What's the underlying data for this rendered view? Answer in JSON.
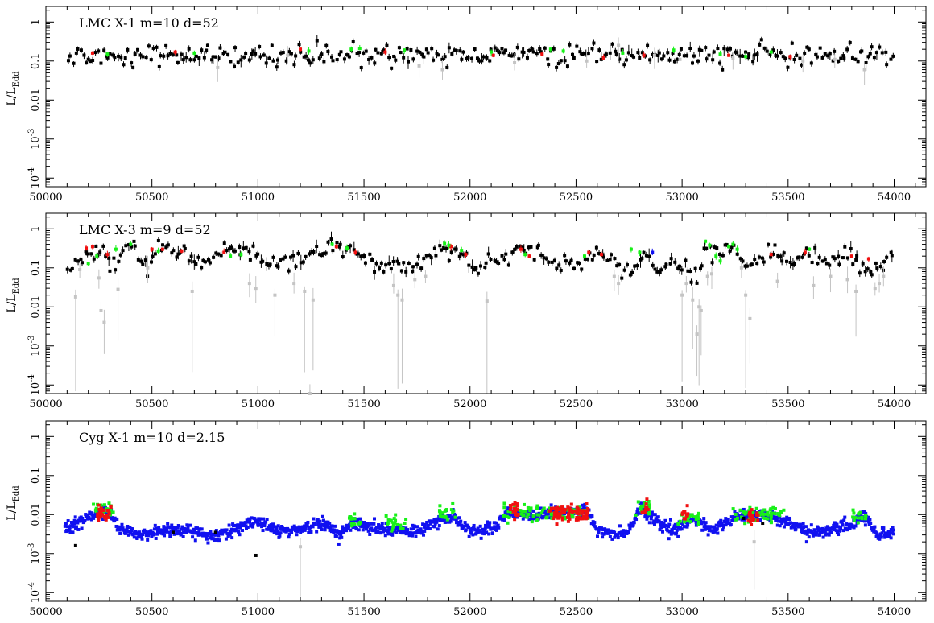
{
  "figure": {
    "ylabel": {
      "base": "L/L",
      "sub": "Edd"
    },
    "colors": {
      "black": "#000000",
      "grey": "#c4c4c4",
      "red": "#f01010",
      "green": "#18f018",
      "blue": "#1010f0"
    }
  },
  "chart_data": [
    {
      "type": "scatter",
      "title": "LMC X-1   m=10  d=52",
      "xlim": [
        50000,
        54150
      ],
      "ylim": [
        6e-05,
        2.5
      ],
      "ylog": true,
      "xticks": [
        "50000",
        "50500",
        "51000",
        "51500",
        "52000",
        "52500",
        "53000",
        "53500",
        "54000"
      ],
      "yticks": [
        "1",
        "0.1",
        "0.01",
        "10^-3",
        "10^-4"
      ],
      "ytick_values": [
        1,
        0.1,
        0.01,
        0.001,
        0.0001
      ],
      "base_level": 0.14,
      "x_range": [
        50100,
        54000
      ],
      "series": [
        {
          "name": "black",
          "color": "#000000",
          "n": 330,
          "level": 0.14,
          "spread": 0.13
        },
        {
          "name": "grey",
          "color": "#c4c4c4",
          "points": [
            [
              50810,
              0.068
            ],
            [
              51140,
              0.14
            ],
            [
              51760,
              0.075
            ],
            [
              51870,
              0.06
            ],
            [
              52210,
              0.09
            ],
            [
              52550,
              0.1
            ],
            [
              52700,
              0.25
            ],
            [
              52870,
              0.14
            ],
            [
              52990,
              0.11
            ],
            [
              53240,
              0.12
            ],
            [
              53570,
              0.1
            ],
            [
              53720,
              0.11
            ],
            [
              53860,
              0.06
            ]
          ]
        },
        {
          "name": "red",
          "color": "#f01010",
          "points": [
            [
              50220,
              0.16
            ],
            [
              50610,
              0.17
            ],
            [
              51200,
              0.2
            ],
            [
              51600,
              0.17
            ],
            [
              52110,
              0.14
            ],
            [
              52340,
              0.15
            ],
            [
              52630,
              0.12
            ],
            [
              52820,
              0.14
            ],
            [
              53220,
              0.14
            ],
            [
              53510,
              0.13
            ]
          ]
        },
        {
          "name": "green",
          "color": "#18f018",
          "points": [
            [
              50290,
              0.15
            ],
            [
              50700,
              0.16
            ],
            [
              51240,
              0.18
            ],
            [
              51440,
              0.2
            ],
            [
              51480,
              0.21
            ],
            [
              51690,
              0.19
            ],
            [
              52100,
              0.17
            ],
            [
              52380,
              0.2
            ],
            [
              52440,
              0.18
            ],
            [
              52720,
              0.16
            ],
            [
              52960,
              0.19
            ],
            [
              53180,
              0.15
            ],
            [
              53300,
              0.13
            ],
            [
              53420,
              0.17
            ]
          ]
        }
      ]
    },
    {
      "type": "scatter",
      "title": "LMC X-3   m=9  d=52",
      "xlim": [
        50000,
        54150
      ],
      "ylim": [
        6e-05,
        2.5
      ],
      "ylog": true,
      "xticks": [
        "50000",
        "50500",
        "51000",
        "51500",
        "52000",
        "52500",
        "53000",
        "53500",
        "54000"
      ],
      "yticks": [
        "1",
        "0.1",
        "0.01",
        "10^-3",
        "10^-4"
      ],
      "ytick_values": [
        1,
        0.1,
        0.01,
        0.001,
        0.0001
      ],
      "x_range": [
        50100,
        54000
      ],
      "profile": [
        [
          50100,
          0.09
        ],
        [
          50180,
          0.2
        ],
        [
          50240,
          0.3
        ],
        [
          50300,
          0.1
        ],
        [
          50370,
          0.25
        ],
        [
          50420,
          0.35
        ],
        [
          50480,
          0.07
        ],
        [
          50520,
          0.3
        ],
        [
          50600,
          0.28
        ],
        [
          50680,
          0.15
        ],
        [
          50760,
          0.15
        ],
        [
          50850,
          0.3
        ],
        [
          50930,
          0.2
        ],
        [
          50980,
          0.25
        ],
        [
          51040,
          0.15
        ],
        [
          51150,
          0.15
        ],
        [
          51250,
          0.2
        ],
        [
          51320,
          0.35
        ],
        [
          51400,
          0.3
        ],
        [
          51500,
          0.2
        ],
        [
          51580,
          0.1
        ],
        [
          51680,
          0.1
        ],
        [
          51780,
          0.15
        ],
        [
          51880,
          0.4
        ],
        [
          51960,
          0.2
        ],
        [
          52030,
          0.08
        ],
        [
          52100,
          0.15
        ],
        [
          52160,
          0.15
        ],
        [
          52250,
          0.3
        ],
        [
          52350,
          0.25
        ],
        [
          52420,
          0.12
        ],
        [
          52500,
          0.15
        ],
        [
          52600,
          0.25
        ],
        [
          52680,
          0.15
        ],
        [
          52720,
          0.08
        ],
        [
          52820,
          0.2
        ],
        [
          52880,
          0.08
        ],
        [
          52950,
          0.15
        ],
        [
          53020,
          0.1
        ],
        [
          53080,
          0.06
        ],
        [
          53110,
          0.45
        ],
        [
          53160,
          0.2
        ],
        [
          53230,
          0.4
        ],
        [
          53310,
          0.08
        ],
        [
          53380,
          0.2
        ],
        [
          53460,
          0.25
        ],
        [
          53520,
          0.15
        ],
        [
          53600,
          0.25
        ],
        [
          53680,
          0.1
        ],
        [
          53760,
          0.2
        ],
        [
          53860,
          0.1
        ],
        [
          53950,
          0.12
        ],
        [
          54000,
          0.25
        ]
      ],
      "series": [
        {
          "name": "black",
          "color": "#000000",
          "n": 330
        },
        {
          "name": "grey",
          "color": "#c4c4c4",
          "points": [
            [
              50140,
              0.018
            ],
            [
              50160,
              0.09
            ],
            [
              50250,
              0.055
            ],
            [
              50260,
              0.008
            ],
            [
              50275,
              0.004
            ],
            [
              50340,
              0.028
            ],
            [
              50480,
              0.1
            ],
            [
              50690,
              0.025
            ],
            [
              50960,
              0.04
            ],
            [
              50990,
              0.03
            ],
            [
              51080,
              0.02
            ],
            [
              51170,
              0.04
            ],
            [
              51220,
              0.025
            ],
            [
              51245,
              6e-05
            ],
            [
              51260,
              0.015
            ],
            [
              51640,
              0.035
            ],
            [
              51660,
              0.02
            ],
            [
              51680,
              0.015
            ],
            [
              51740,
              0.05
            ],
            [
              51790,
              0.06
            ],
            [
              52080,
              0.014
            ],
            [
              52680,
              0.06
            ],
            [
              52700,
              0.04
            ],
            [
              53000,
              0.02
            ],
            [
              53020,
              0.04
            ],
            [
              53050,
              0.015
            ],
            [
              53070,
              0.002
            ],
            [
              53080,
              0.01
            ],
            [
              53090,
              0.008
            ],
            [
              53120,
              0.06
            ],
            [
              53140,
              0.07
            ],
            [
              53280,
              0.1
            ],
            [
              53300,
              0.02
            ],
            [
              53320,
              0.005
            ],
            [
              53450,
              0.045
            ],
            [
              53620,
              0.035
            ],
            [
              53700,
              0.06
            ],
            [
              53780,
              0.05
            ],
            [
              53820,
              0.025
            ],
            [
              53910,
              0.03
            ],
            [
              53930,
              0.04
            ],
            [
              53950,
              0.06
            ]
          ]
        },
        {
          "name": "red",
          "color": "#f01010",
          "points": [
            [
              50190,
              0.32
            ],
            [
              50220,
              0.35
            ],
            [
              50290,
              0.22
            ],
            [
              50500,
              0.3
            ],
            [
              50550,
              0.3
            ],
            [
              50640,
              0.27
            ],
            [
              50840,
              0.25
            ],
            [
              51370,
              0.35
            ],
            [
              51460,
              0.25
            ],
            [
              51910,
              0.35
            ],
            [
              51980,
              0.22
            ],
            [
              52240,
              0.3
            ],
            [
              52280,
              0.2
            ],
            [
              52560,
              0.25
            ],
            [
              52620,
              0.22
            ],
            [
              53420,
              0.22
            ],
            [
              53580,
              0.25
            ],
            [
              53800,
              0.2
            ],
            [
              53880,
              0.17
            ]
          ]
        },
        {
          "name": "green",
          "color": "#18f018",
          "points": [
            [
              50200,
              0.13
            ],
            [
              50240,
              0.2
            ],
            [
              50330,
              0.3
            ],
            [
              50400,
              0.4
            ],
            [
              50530,
              0.27
            ],
            [
              50870,
              0.2
            ],
            [
              50920,
              0.22
            ],
            [
              51350,
              0.4
            ],
            [
              51420,
              0.32
            ],
            [
              51880,
              0.42
            ],
            [
              51900,
              0.38
            ],
            [
              51960,
              0.28
            ],
            [
              52260,
              0.22
            ],
            [
              52540,
              0.2
            ],
            [
              52760,
              0.3
            ],
            [
              52800,
              0.25
            ],
            [
              53110,
              0.48
            ],
            [
              53130,
              0.38
            ],
            [
              53160,
              0.2
            ],
            [
              53180,
              0.15
            ],
            [
              53220,
              0.35
            ],
            [
              53240,
              0.4
            ],
            [
              53260,
              0.3
            ],
            [
              53600,
              0.3
            ]
          ]
        },
        {
          "name": "blue",
          "color": "#1010f0",
          "points": [
            [
              52860,
              0.25
            ]
          ]
        }
      ]
    },
    {
      "type": "scatter",
      "title": "Cyg X-1   m=10  d=2.15",
      "xlim": [
        50000,
        54150
      ],
      "ylim": [
        6e-05,
        2.5
      ],
      "ylog": true,
      "xticks": [
        "50000",
        "50500",
        "51000",
        "51500",
        "52000",
        "52500",
        "53000",
        "53500",
        "54000"
      ],
      "yticks": [
        "1",
        "0.1",
        "0.01",
        "10^-3",
        "10^-4"
      ],
      "ytick_values": [
        1,
        0.1,
        0.01,
        0.001,
        0.0001
      ],
      "x_range": [
        50090,
        54000
      ],
      "profile": [
        [
          50090,
          0.004
        ],
        [
          50200,
          0.008
        ],
        [
          50250,
          0.012
        ],
        [
          50310,
          0.01
        ],
        [
          50350,
          0.004
        ],
        [
          50450,
          0.003
        ],
        [
          50600,
          0.0045
        ],
        [
          50750,
          0.003
        ],
        [
          50850,
          0.0035
        ],
        [
          51000,
          0.007
        ],
        [
          51100,
          0.0035
        ],
        [
          51200,
          0.004
        ],
        [
          51300,
          0.006
        ],
        [
          51380,
          0.003
        ],
        [
          51450,
          0.007
        ],
        [
          51520,
          0.0045
        ],
        [
          51650,
          0.004
        ],
        [
          51750,
          0.0035
        ],
        [
          51850,
          0.007
        ],
        [
          51920,
          0.009
        ],
        [
          52000,
          0.004
        ],
        [
          52100,
          0.004
        ],
        [
          52180,
          0.011
        ],
        [
          52300,
          0.01
        ],
        [
          52450,
          0.012
        ],
        [
          52550,
          0.013
        ],
        [
          52600,
          0.004
        ],
        [
          52680,
          0.003
        ],
        [
          52750,
          0.004
        ],
        [
          52800,
          0.015
        ],
        [
          52860,
          0.008
        ],
        [
          52950,
          0.0035
        ],
        [
          53050,
          0.008
        ],
        [
          53150,
          0.004
        ],
        [
          53250,
          0.009
        ],
        [
          53400,
          0.01
        ],
        [
          53500,
          0.006
        ],
        [
          53600,
          0.0035
        ],
        [
          53700,
          0.004
        ],
        [
          53800,
          0.005
        ],
        [
          53850,
          0.01
        ],
        [
          53920,
          0.003
        ],
        [
          54000,
          0.004
        ]
      ],
      "series": [
        {
          "name": "blue",
          "color": "#1010f0",
          "n": 1400
        },
        {
          "name": "green",
          "color": "#18f018",
          "ranges": [
            [
              50220,
              50320,
              0.013
            ],
            [
              51430,
              51500,
              0.008
            ],
            [
              51600,
              51700,
              0.006
            ],
            [
              51850,
              51940,
              0.011
            ],
            [
              52160,
              52560,
              0.011
            ],
            [
              52780,
              52850,
              0.016
            ],
            [
              52980,
              53080,
              0.008
            ],
            [
              53240,
              53480,
              0.01
            ],
            [
              53800,
              53870,
              0.009
            ]
          ],
          "n": 260
        },
        {
          "name": "red",
          "color": "#f01010",
          "ranges": [
            [
              50240,
              50310,
              0.011
            ],
            [
              52190,
              52230,
              0.013
            ],
            [
              52370,
              52560,
              0.011
            ],
            [
              52810,
              52840,
              0.013
            ],
            [
              53000,
              53030,
              0.01
            ],
            [
              53310,
              53360,
              0.009
            ]
          ],
          "n": 170
        },
        {
          "name": "grey",
          "color": "#c4c4c4",
          "points": [
            [
              51200,
              0.0015
            ],
            [
              53340,
              0.002
            ]
          ]
        },
        {
          "name": "black",
          "color": "#000000",
          "points": [
            [
              50140,
              0.0016
            ],
            [
              50990,
              0.0009
            ],
            [
              50600,
              0.0035
            ],
            [
              50800,
              0.0035
            ],
            [
              53290,
              0.008
            ],
            [
              53380,
              0.006
            ]
          ]
        }
      ]
    }
  ]
}
